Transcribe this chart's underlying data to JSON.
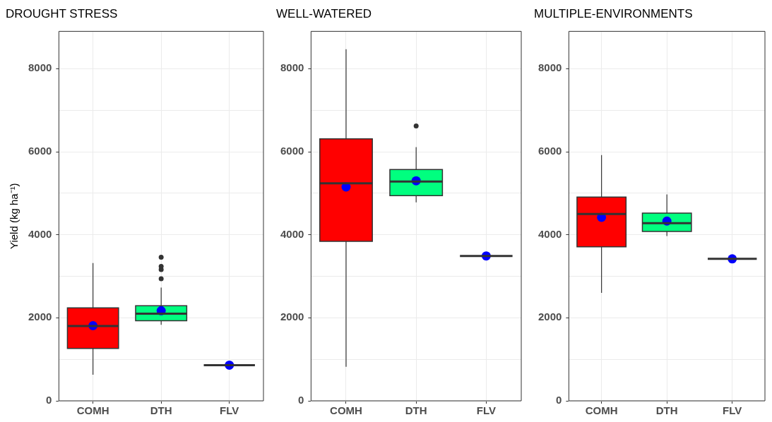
{
  "chart_data": [
    {
      "type": "box",
      "title": "DROUGHT STRESS",
      "ylabel": "Yield (kg ha⁻¹)",
      "categories": [
        "COMH",
        "DTH",
        "FLV"
      ],
      "colors": [
        "#ff0000",
        "#00ff7f",
        "#333333"
      ],
      "ylim": [
        0,
        8900
      ],
      "yticks": [
        0,
        {
          "value": 1000,
          "label": null
        },
        2000,
        {
          "value": 3000,
          "label": null
        },
        4000,
        {
          "value": 5000,
          "label": null
        },
        6000,
        {
          "value": 7000,
          "label": null
        },
        8000
      ],
      "grid": true,
      "boxes": [
        {
          "low": 630,
          "q1": 1260,
          "median": 1800,
          "q3": 2240,
          "high": 3320,
          "mean": 1810
        },
        {
          "low": 1830,
          "q1": 1930,
          "median": 2100,
          "q3": 2290,
          "high": 2730,
          "mean": 2170,
          "outliers": [
            2940,
            3160,
            3240,
            3460
          ]
        },
        {
          "low": 860,
          "q1": 860,
          "median": 860,
          "q3": 860,
          "high": 860,
          "mean": 860
        }
      ]
    },
    {
      "type": "box",
      "title": "WELL-WATERED",
      "categories": [
        "COMH",
        "DTH",
        "FLV"
      ],
      "colors": [
        "#ff0000",
        "#00ff7f",
        "#333333"
      ],
      "ylim": [
        0,
        8900
      ],
      "yticks": [
        0,
        {
          "value": 1000,
          "label": null
        },
        2000,
        {
          "value": 3000,
          "label": null
        },
        4000,
        {
          "value": 5000,
          "label": null
        },
        6000,
        {
          "value": 7000,
          "label": null
        },
        8000
      ],
      "grid": true,
      "boxes": [
        {
          "low": 820,
          "q1": 3840,
          "median": 5240,
          "q3": 6310,
          "high": 8470,
          "mean": 5150
        },
        {
          "low": 4780,
          "q1": 4940,
          "median": 5280,
          "q3": 5570,
          "high": 6110,
          "mean": 5300,
          "outliers": [
            6620
          ]
        },
        {
          "low": 3490,
          "q1": 3490,
          "median": 3490,
          "q3": 3490,
          "high": 3490,
          "mean": 3490
        }
      ]
    },
    {
      "type": "box",
      "title": "MULTIPLE-ENVIRONMENTS",
      "categories": [
        "COMH",
        "DTH",
        "FLV"
      ],
      "colors": [
        "#ff0000",
        "#00ff7f",
        "#333333"
      ],
      "ylim": [
        0,
        8900
      ],
      "yticks": [
        0,
        {
          "value": 1000,
          "label": null
        },
        2000,
        {
          "value": 3000,
          "label": null
        },
        4000,
        {
          "value": 5000,
          "label": null
        },
        6000,
        {
          "value": 7000,
          "label": null
        },
        8000
      ],
      "grid": true,
      "boxes": [
        {
          "low": 2600,
          "q1": 3710,
          "median": 4500,
          "q3": 4910,
          "high": 5920,
          "mean": 4420
        },
        {
          "low": 3970,
          "q1": 4080,
          "median": 4280,
          "q3": 4520,
          "high": 4970,
          "mean": 4330
        },
        {
          "low": 3420,
          "q1": 3420,
          "median": 3420,
          "q3": 3420,
          "high": 3420,
          "mean": 3420
        }
      ]
    }
  ]
}
